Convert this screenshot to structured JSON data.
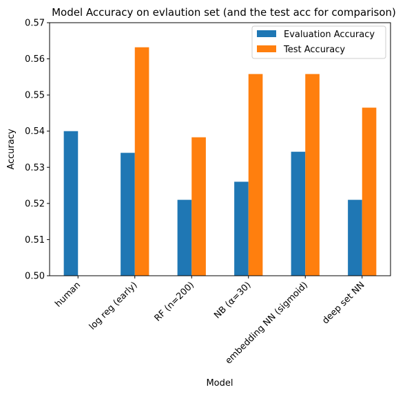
{
  "chart_data": {
    "type": "bar",
    "title": "Model Accuracy on evlaution set (and the test acc for comparison)",
    "xlabel": "Model",
    "ylabel": "Accuracy",
    "categories": [
      "human",
      "log reg (early)",
      "RF (n=200)",
      "NB (α=30)",
      "embedding NN (sigmoid)",
      "deep set NN"
    ],
    "series": [
      {
        "name": "Evaluation Accuracy",
        "color": "#1f77b4",
        "values": [
          0.54,
          0.534,
          0.521,
          0.526,
          0.5343,
          0.521
        ]
      },
      {
        "name": "Test Accuracy",
        "color": "#ff7f0e",
        "values": [
          null,
          0.5632,
          0.5383,
          0.5558,
          0.5558,
          0.5465
        ]
      }
    ],
    "ylim": [
      0.5,
      0.57
    ],
    "yticks": [
      0.5,
      0.51,
      0.52,
      0.53,
      0.54,
      0.55,
      0.56,
      0.57
    ],
    "ytick_labels": [
      "0.50",
      "0.51",
      "0.52",
      "0.53",
      "0.54",
      "0.55",
      "0.56",
      "0.57"
    ],
    "grid": false,
    "legend_position": "top-right"
  }
}
